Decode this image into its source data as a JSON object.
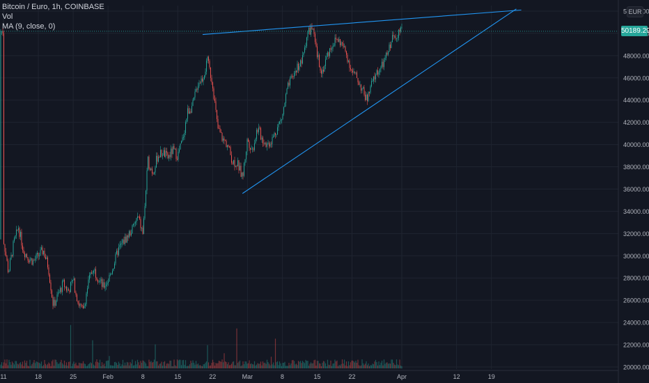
{
  "legend": {
    "symbol": "Bitcoin / Euro, 1h, COINBASE",
    "vol": "Vol",
    "ma": "MA (9, close, 0)"
  },
  "currency_badge": "EUR",
  "current_price": "50189.29",
  "colors": {
    "background": "#131722",
    "up": "#26a69a",
    "down": "#ef5350",
    "trendline": "#2196f3",
    "grid": "#1f2430",
    "axis_text": "#b2b5be"
  },
  "chart_data": {
    "type": "candlestick",
    "x_ticks": [
      "11",
      "18",
      "25",
      "Feb",
      "8",
      "15",
      "22",
      "Mar",
      "8",
      "15",
      "22",
      "Apr",
      "12",
      "19"
    ],
    "y_ticks": [
      "20000.00",
      "22000.00",
      "24000.00",
      "26000.00",
      "28000.00",
      "30000.00",
      "32000.00",
      "34000.00",
      "36000.00",
      "38000.00",
      "40000.00",
      "42000.00",
      "44000.00",
      "46000.00",
      "48000.00",
      "50000.00",
      "52000.00"
    ],
    "ylim": [
      20000,
      52500
    ],
    "grid": true,
    "price_path": [
      [
        "Jan 11",
        31500
      ],
      [
        "Jan 12",
        28500
      ],
      [
        "Jan 13",
        31000
      ],
      [
        "Jan 14",
        32600
      ],
      [
        "Jan 15",
        30500
      ],
      [
        "Jan 16",
        29800
      ],
      [
        "Jan 17",
        29500
      ],
      [
        "Jan 19",
        30500
      ],
      [
        "Jan 20",
        29000
      ],
      [
        "Jan 21",
        25500
      ],
      [
        "Jan 22",
        26500
      ],
      [
        "Jan 23",
        27500
      ],
      [
        "Jan 24",
        26800
      ],
      [
        "Jan 25",
        27800
      ],
      [
        "Jan 26",
        25800
      ],
      [
        "Jan 27",
        25000
      ],
      [
        "Jan 28",
        27500
      ],
      [
        "Jan 29",
        29000
      ],
      [
        "Jan 30",
        28000
      ],
      [
        "Jan 31",
        27200
      ],
      [
        "Feb 1",
        27800
      ],
      [
        "Feb 2",
        29000
      ],
      [
        "Feb 3",
        30500
      ],
      [
        "Feb 4",
        31200
      ],
      [
        "Feb 5",
        31800
      ],
      [
        "Feb 6",
        32500
      ],
      [
        "Feb 7",
        33500
      ],
      [
        "Feb 8",
        32000
      ],
      [
        "Feb 9",
        38500
      ],
      [
        "Feb 10",
        37500
      ],
      [
        "Feb 11",
        39000
      ],
      [
        "Feb 12",
        39300
      ],
      [
        "Feb 13",
        38800
      ],
      [
        "Feb 14",
        39500
      ],
      [
        "Feb 15",
        39000
      ],
      [
        "Feb 16",
        40500
      ],
      [
        "Feb 17",
        43000
      ],
      [
        "Feb 18",
        43500
      ],
      [
        "Feb 19",
        45500
      ],
      [
        "Feb 20",
        46000
      ],
      [
        "Feb 21",
        47500
      ],
      [
        "Feb 22",
        45500
      ],
      [
        "Feb 23",
        41500
      ],
      [
        "Feb 24",
        40500
      ],
      [
        "Feb 25",
        40000
      ],
      [
        "Feb 26",
        38500
      ],
      [
        "Feb 27",
        38300
      ],
      [
        "Feb 28",
        37000
      ],
      [
        "Mar 1",
        40500
      ],
      [
        "Mar 2",
        39500
      ],
      [
        "Mar 3",
        41500
      ],
      [
        "Mar 4",
        40500
      ],
      [
        "Mar 5",
        40000
      ],
      [
        "Mar 6",
        40500
      ],
      [
        "Mar 7",
        41500
      ],
      [
        "Mar 8",
        42500
      ],
      [
        "Mar 9",
        45000
      ],
      [
        "Mar 10",
        46000
      ],
      [
        "Mar 11",
        47000
      ],
      [
        "Mar 12",
        47500
      ],
      [
        "Mar 13",
        50000
      ],
      [
        "Mar 14",
        50500
      ],
      [
        "Mar 15",
        48000
      ],
      [
        "Mar 16",
        46500
      ],
      [
        "Mar 17",
        48000
      ],
      [
        "Mar 18",
        49000
      ],
      [
        "Mar 19",
        49500
      ],
      [
        "Mar 20",
        49000
      ],
      [
        "Mar 21",
        48000
      ],
      [
        "Mar 22",
        46500
      ],
      [
        "Mar 23",
        46000
      ],
      [
        "Mar 24",
        45000
      ],
      [
        "Mar 25",
        44000
      ],
      [
        "Mar 26",
        45500
      ],
      [
        "Mar 27",
        46500
      ],
      [
        "Mar 28",
        47000
      ],
      [
        "Mar 29",
        48000
      ],
      [
        "Mar 30",
        49500
      ],
      [
        "Mar 31",
        50000
      ],
      [
        "Apr 1",
        50189
      ]
    ],
    "trendlines": [
      {
        "from": [
          "Feb 20",
          49900
        ],
        "to": [
          "Apr 25",
          52100
        ]
      },
      {
        "from": [
          "Feb 28",
          35600
        ],
        "to": [
          "Apr 24",
          52200
        ]
      }
    ]
  }
}
